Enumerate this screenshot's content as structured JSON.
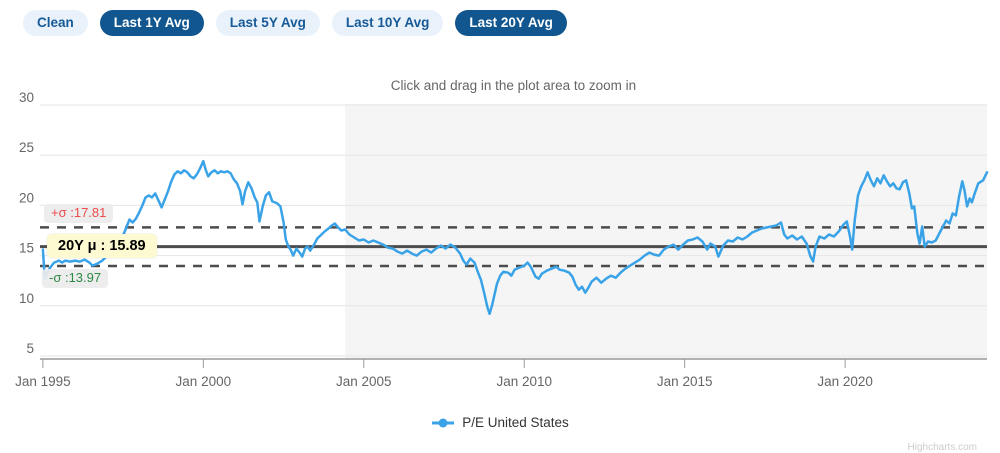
{
  "toolbar": {
    "buttons": [
      {
        "label": "Clean",
        "active": false
      },
      {
        "label": "Last 1Y Avg",
        "active": true
      },
      {
        "label": "Last 5Y Avg",
        "active": false
      },
      {
        "label": "Last 10Y Avg",
        "active": false
      },
      {
        "label": "Last 20Y Avg",
        "active": true
      }
    ]
  },
  "colors": {
    "button_active_bg": "#11568f",
    "button_active_text": "#ffffff",
    "button_inactive_bg": "#e9f2fb",
    "button_inactive_text": "#175a97",
    "grid": "#e6e6e6",
    "band": "#f5f5f5",
    "axis_line": "#9a9a9a",
    "axis_text": "#666666",
    "plot_line": "#4d4d4d",
    "series_blue": "#3aa3e8"
  },
  "chart_data": {
    "type": "line",
    "title": "Click and drag in the plot area to zoom in",
    "xlabel": "",
    "ylabel": "",
    "grid": true,
    "legend_position": "bottom-center",
    "xlim": [
      1994.91,
      2024.42
    ],
    "ylim": [
      5,
      30
    ],
    "y_ticks": [
      5,
      10,
      15,
      20,
      25,
      30
    ],
    "x_ticks": [
      {
        "year": 1995,
        "label": "Jan 1995"
      },
      {
        "year": 2000,
        "label": "Jan 2000"
      },
      {
        "year": 2005,
        "label": "Jan 2005"
      },
      {
        "year": 2010,
        "label": "Jan 2010"
      },
      {
        "year": 2015,
        "label": "Jan 2015"
      },
      {
        "year": 2020,
        "label": "Jan 2020"
      }
    ],
    "plot_band": {
      "from": 2004.42,
      "to": 2024.42,
      "note": "last 20 years"
    },
    "plot_lines": [
      {
        "id": "upper-sigma",
        "value": 17.81,
        "style": "dashed",
        "label": "+σ :17.81",
        "label_color": "#ef4b4b"
      },
      {
        "id": "mean",
        "value": 15.89,
        "style": "solid",
        "label": "20Y μ : 15.89",
        "label_color": "#000000"
      },
      {
        "id": "lower-sigma",
        "value": 13.97,
        "style": "dashed",
        "label": "-σ :13.97",
        "label_color": "#2c8a44"
      }
    ],
    "series": [
      {
        "name": "P/E United States",
        "color": "#3aa3e8",
        "points": [
          [
            1995.0,
            15.6
          ],
          [
            1995.06,
            12.7
          ],
          [
            1995.15,
            13.4
          ],
          [
            1995.25,
            13.9
          ],
          [
            1995.35,
            14.3
          ],
          [
            1995.5,
            14.5
          ],
          [
            1995.6,
            14.3
          ],
          [
            1995.7,
            14.5
          ],
          [
            1995.85,
            14.4
          ],
          [
            1996.0,
            14.5
          ],
          [
            1996.15,
            14.4
          ],
          [
            1996.3,
            14.6
          ],
          [
            1996.45,
            14.3
          ],
          [
            1996.55,
            14.0
          ],
          [
            1996.7,
            14.2
          ],
          [
            1996.85,
            14.5
          ],
          [
            1997.0,
            15.0
          ],
          [
            1997.1,
            15.6
          ],
          [
            1997.2,
            15.4
          ],
          [
            1997.35,
            16.1
          ],
          [
            1997.5,
            17.0
          ],
          [
            1997.6,
            17.8
          ],
          [
            1997.7,
            18.6
          ],
          [
            1997.8,
            18.3
          ],
          [
            1997.9,
            18.7
          ],
          [
            1998.0,
            19.3
          ],
          [
            1998.1,
            20.0
          ],
          [
            1998.2,
            20.8
          ],
          [
            1998.3,
            21.0
          ],
          [
            1998.4,
            20.8
          ],
          [
            1998.5,
            21.2
          ],
          [
            1998.6,
            20.5
          ],
          [
            1998.7,
            19.8
          ],
          [
            1998.8,
            20.6
          ],
          [
            1998.9,
            21.4
          ],
          [
            1999.0,
            22.4
          ],
          [
            1999.1,
            23.1
          ],
          [
            1999.2,
            23.4
          ],
          [
            1999.3,
            23.2
          ],
          [
            1999.4,
            23.5
          ],
          [
            1999.5,
            23.3
          ],
          [
            1999.6,
            22.9
          ],
          [
            1999.7,
            22.7
          ],
          [
            1999.8,
            23.1
          ],
          [
            1999.9,
            23.7
          ],
          [
            2000.0,
            24.4
          ],
          [
            2000.08,
            23.5
          ],
          [
            2000.15,
            22.9
          ],
          [
            2000.25,
            23.3
          ],
          [
            2000.35,
            23.5
          ],
          [
            2000.45,
            23.2
          ],
          [
            2000.55,
            23.4
          ],
          [
            2000.65,
            23.3
          ],
          [
            2000.75,
            23.4
          ],
          [
            2000.85,
            23.2
          ],
          [
            2000.95,
            22.6
          ],
          [
            2001.05,
            22.2
          ],
          [
            2001.15,
            21.4
          ],
          [
            2001.22,
            20.1
          ],
          [
            2001.3,
            21.4
          ],
          [
            2001.4,
            22.3
          ],
          [
            2001.5,
            21.7
          ],
          [
            2001.6,
            20.8
          ],
          [
            2001.68,
            20.3
          ],
          [
            2001.75,
            18.4
          ],
          [
            2001.85,
            19.9
          ],
          [
            2001.95,
            21.0
          ],
          [
            2002.05,
            21.3
          ],
          [
            2002.15,
            20.4
          ],
          [
            2002.3,
            20.2
          ],
          [
            2002.4,
            19.9
          ],
          [
            2002.5,
            18.3
          ],
          [
            2002.57,
            16.6
          ],
          [
            2002.65,
            15.9
          ],
          [
            2002.72,
            15.6
          ],
          [
            2002.8,
            15.0
          ],
          [
            2002.9,
            15.7
          ],
          [
            2003.0,
            15.3
          ],
          [
            2003.08,
            14.9
          ],
          [
            2003.17,
            15.7
          ],
          [
            2003.25,
            15.9
          ],
          [
            2003.33,
            15.5
          ],
          [
            2003.45,
            16.1
          ],
          [
            2003.55,
            16.7
          ],
          [
            2003.65,
            17.0
          ],
          [
            2003.78,
            17.4
          ],
          [
            2003.9,
            17.7
          ],
          [
            2004.0,
            18.0
          ],
          [
            2004.1,
            18.2
          ],
          [
            2004.2,
            17.8
          ],
          [
            2004.3,
            17.5
          ],
          [
            2004.42,
            17.6
          ],
          [
            2004.55,
            17.1
          ],
          [
            2004.7,
            16.8
          ],
          [
            2004.85,
            16.5
          ],
          [
            2005.0,
            16.6
          ],
          [
            2005.15,
            16.3
          ],
          [
            2005.3,
            16.5
          ],
          [
            2005.45,
            16.3
          ],
          [
            2005.6,
            16.1
          ],
          [
            2005.75,
            15.8
          ],
          [
            2005.9,
            15.7
          ],
          [
            2006.05,
            15.4
          ],
          [
            2006.2,
            15.2
          ],
          [
            2006.35,
            15.5
          ],
          [
            2006.5,
            15.2
          ],
          [
            2006.65,
            15.0
          ],
          [
            2006.8,
            15.4
          ],
          [
            2006.95,
            15.6
          ],
          [
            2007.1,
            15.3
          ],
          [
            2007.25,
            15.7
          ],
          [
            2007.4,
            16.0
          ],
          [
            2007.55,
            15.7
          ],
          [
            2007.7,
            16.1
          ],
          [
            2007.85,
            15.8
          ],
          [
            2008.0,
            15.2
          ],
          [
            2008.1,
            14.5
          ],
          [
            2008.2,
            14.1
          ],
          [
            2008.32,
            14.7
          ],
          [
            2008.45,
            14.3
          ],
          [
            2008.55,
            13.4
          ],
          [
            2008.65,
            12.6
          ],
          [
            2008.75,
            11.3
          ],
          [
            2008.85,
            9.9
          ],
          [
            2008.92,
            9.2
          ],
          [
            2009.0,
            10.1
          ],
          [
            2009.08,
            11.2
          ],
          [
            2009.15,
            12.2
          ],
          [
            2009.25,
            13.0
          ],
          [
            2009.35,
            13.4
          ],
          [
            2009.5,
            13.3
          ],
          [
            2009.6,
            13.0
          ],
          [
            2009.7,
            13.6
          ],
          [
            2009.85,
            13.8
          ],
          [
            2010.0,
            14.0
          ],
          [
            2010.1,
            14.3
          ],
          [
            2010.2,
            13.9
          ],
          [
            2010.35,
            12.9
          ],
          [
            2010.45,
            12.7
          ],
          [
            2010.55,
            13.2
          ],
          [
            2010.7,
            13.5
          ],
          [
            2010.85,
            13.7
          ],
          [
            2011.0,
            13.9
          ],
          [
            2011.1,
            13.6
          ],
          [
            2011.25,
            13.5
          ],
          [
            2011.4,
            13.3
          ],
          [
            2011.5,
            12.9
          ],
          [
            2011.6,
            12.1
          ],
          [
            2011.7,
            11.6
          ],
          [
            2011.8,
            11.9
          ],
          [
            2011.9,
            11.3
          ],
          [
            2012.0,
            11.8
          ],
          [
            2012.1,
            12.4
          ],
          [
            2012.25,
            12.8
          ],
          [
            2012.4,
            12.3
          ],
          [
            2012.55,
            12.7
          ],
          [
            2012.7,
            13.0
          ],
          [
            2012.85,
            12.8
          ],
          [
            2013.0,
            13.3
          ],
          [
            2013.15,
            13.7
          ],
          [
            2013.3,
            14.0
          ],
          [
            2013.45,
            14.3
          ],
          [
            2013.6,
            14.6
          ],
          [
            2013.75,
            15.0
          ],
          [
            2013.9,
            15.3
          ],
          [
            2014.05,
            15.1
          ],
          [
            2014.2,
            15.0
          ],
          [
            2014.35,
            15.6
          ],
          [
            2014.5,
            15.9
          ],
          [
            2014.65,
            16.1
          ],
          [
            2014.8,
            15.6
          ],
          [
            2014.95,
            16.1
          ],
          [
            2015.1,
            16.5
          ],
          [
            2015.25,
            16.6
          ],
          [
            2015.4,
            16.8
          ],
          [
            2015.55,
            16.4
          ],
          [
            2015.7,
            15.6
          ],
          [
            2015.8,
            16.2
          ],
          [
            2015.95,
            15.9
          ],
          [
            2016.05,
            14.9
          ],
          [
            2016.2,
            16.0
          ],
          [
            2016.35,
            16.5
          ],
          [
            2016.5,
            16.4
          ],
          [
            2016.65,
            16.8
          ],
          [
            2016.8,
            16.6
          ],
          [
            2016.95,
            16.9
          ],
          [
            2017.1,
            17.3
          ],
          [
            2017.25,
            17.5
          ],
          [
            2017.4,
            17.7
          ],
          [
            2017.55,
            17.8
          ],
          [
            2017.7,
            17.9
          ],
          [
            2017.85,
            18.0
          ],
          [
            2018.0,
            18.3
          ],
          [
            2018.1,
            17.1
          ],
          [
            2018.2,
            16.7
          ],
          [
            2018.35,
            17.0
          ],
          [
            2018.5,
            16.6
          ],
          [
            2018.65,
            16.9
          ],
          [
            2018.8,
            16.2
          ],
          [
            2018.92,
            14.9
          ],
          [
            2019.0,
            14.4
          ],
          [
            2019.08,
            15.9
          ],
          [
            2019.2,
            16.9
          ],
          [
            2019.35,
            16.7
          ],
          [
            2019.5,
            17.1
          ],
          [
            2019.65,
            16.9
          ],
          [
            2019.8,
            17.4
          ],
          [
            2019.95,
            18.1
          ],
          [
            2020.05,
            18.4
          ],
          [
            2020.15,
            16.9
          ],
          [
            2020.22,
            15.6
          ],
          [
            2020.3,
            18.6
          ],
          [
            2020.4,
            21.0
          ],
          [
            2020.5,
            21.9
          ],
          [
            2020.6,
            22.5
          ],
          [
            2020.7,
            23.3
          ],
          [
            2020.8,
            22.5
          ],
          [
            2020.9,
            21.9
          ],
          [
            2021.0,
            22.7
          ],
          [
            2021.1,
            22.2
          ],
          [
            2021.2,
            23.0
          ],
          [
            2021.3,
            22.4
          ],
          [
            2021.4,
            21.9
          ],
          [
            2021.5,
            22.2
          ],
          [
            2021.6,
            21.7
          ],
          [
            2021.7,
            21.6
          ],
          [
            2021.8,
            22.3
          ],
          [
            2021.9,
            22.5
          ],
          [
            2022.0,
            21.2
          ],
          [
            2022.08,
            19.7
          ],
          [
            2022.15,
            19.9
          ],
          [
            2022.25,
            17.2
          ],
          [
            2022.32,
            16.2
          ],
          [
            2022.4,
            17.9
          ],
          [
            2022.48,
            15.9
          ],
          [
            2022.58,
            16.4
          ],
          [
            2022.7,
            16.3
          ],
          [
            2022.82,
            16.5
          ],
          [
            2022.95,
            17.3
          ],
          [
            2023.05,
            17.9
          ],
          [
            2023.15,
            18.5
          ],
          [
            2023.25,
            18.2
          ],
          [
            2023.35,
            19.2
          ],
          [
            2023.45,
            19.0
          ],
          [
            2023.55,
            20.9
          ],
          [
            2023.65,
            22.4
          ],
          [
            2023.72,
            21.5
          ],
          [
            2023.8,
            19.9
          ],
          [
            2023.88,
            20.7
          ],
          [
            2023.95,
            20.3
          ],
          [
            2024.05,
            21.3
          ],
          [
            2024.15,
            22.2
          ],
          [
            2024.3,
            22.5
          ],
          [
            2024.42,
            23.3
          ]
        ]
      }
    ],
    "credit": "Highcharts.com"
  }
}
